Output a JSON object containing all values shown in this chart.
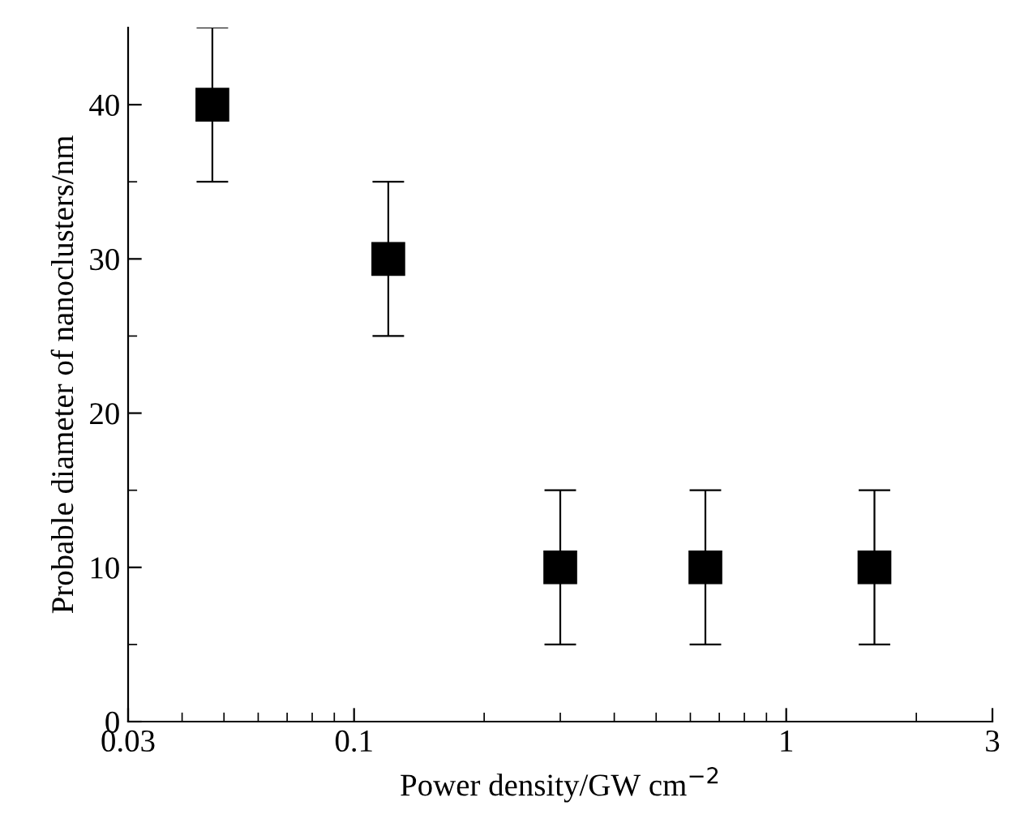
{
  "chart_data": {
    "type": "scatter",
    "xlabel": "Power density/GW cm$^{−2}$",
    "ylabel": "Probable diameter of nanoclusters/nm",
    "x": [
      0.047,
      0.12,
      0.3,
      0.65,
      1.6
    ],
    "series": [
      {
        "color": "#000000",
        "values": [
          40,
          30,
          10,
          10,
          10
        ],
        "errors": [
          5,
          5,
          5,
          5,
          5
        ]
      }
    ],
    "log": "x",
    "xlim": [
      0.03,
      3
    ],
    "xticks": [
      0.03,
      0.1,
      1,
      3
    ],
    "ylim": [
      0,
      45
    ],
    "yticks": [
      0,
      10,
      20,
      30,
      40
    ],
    "marker": "square",
    "grid": false,
    "legend": false
  }
}
